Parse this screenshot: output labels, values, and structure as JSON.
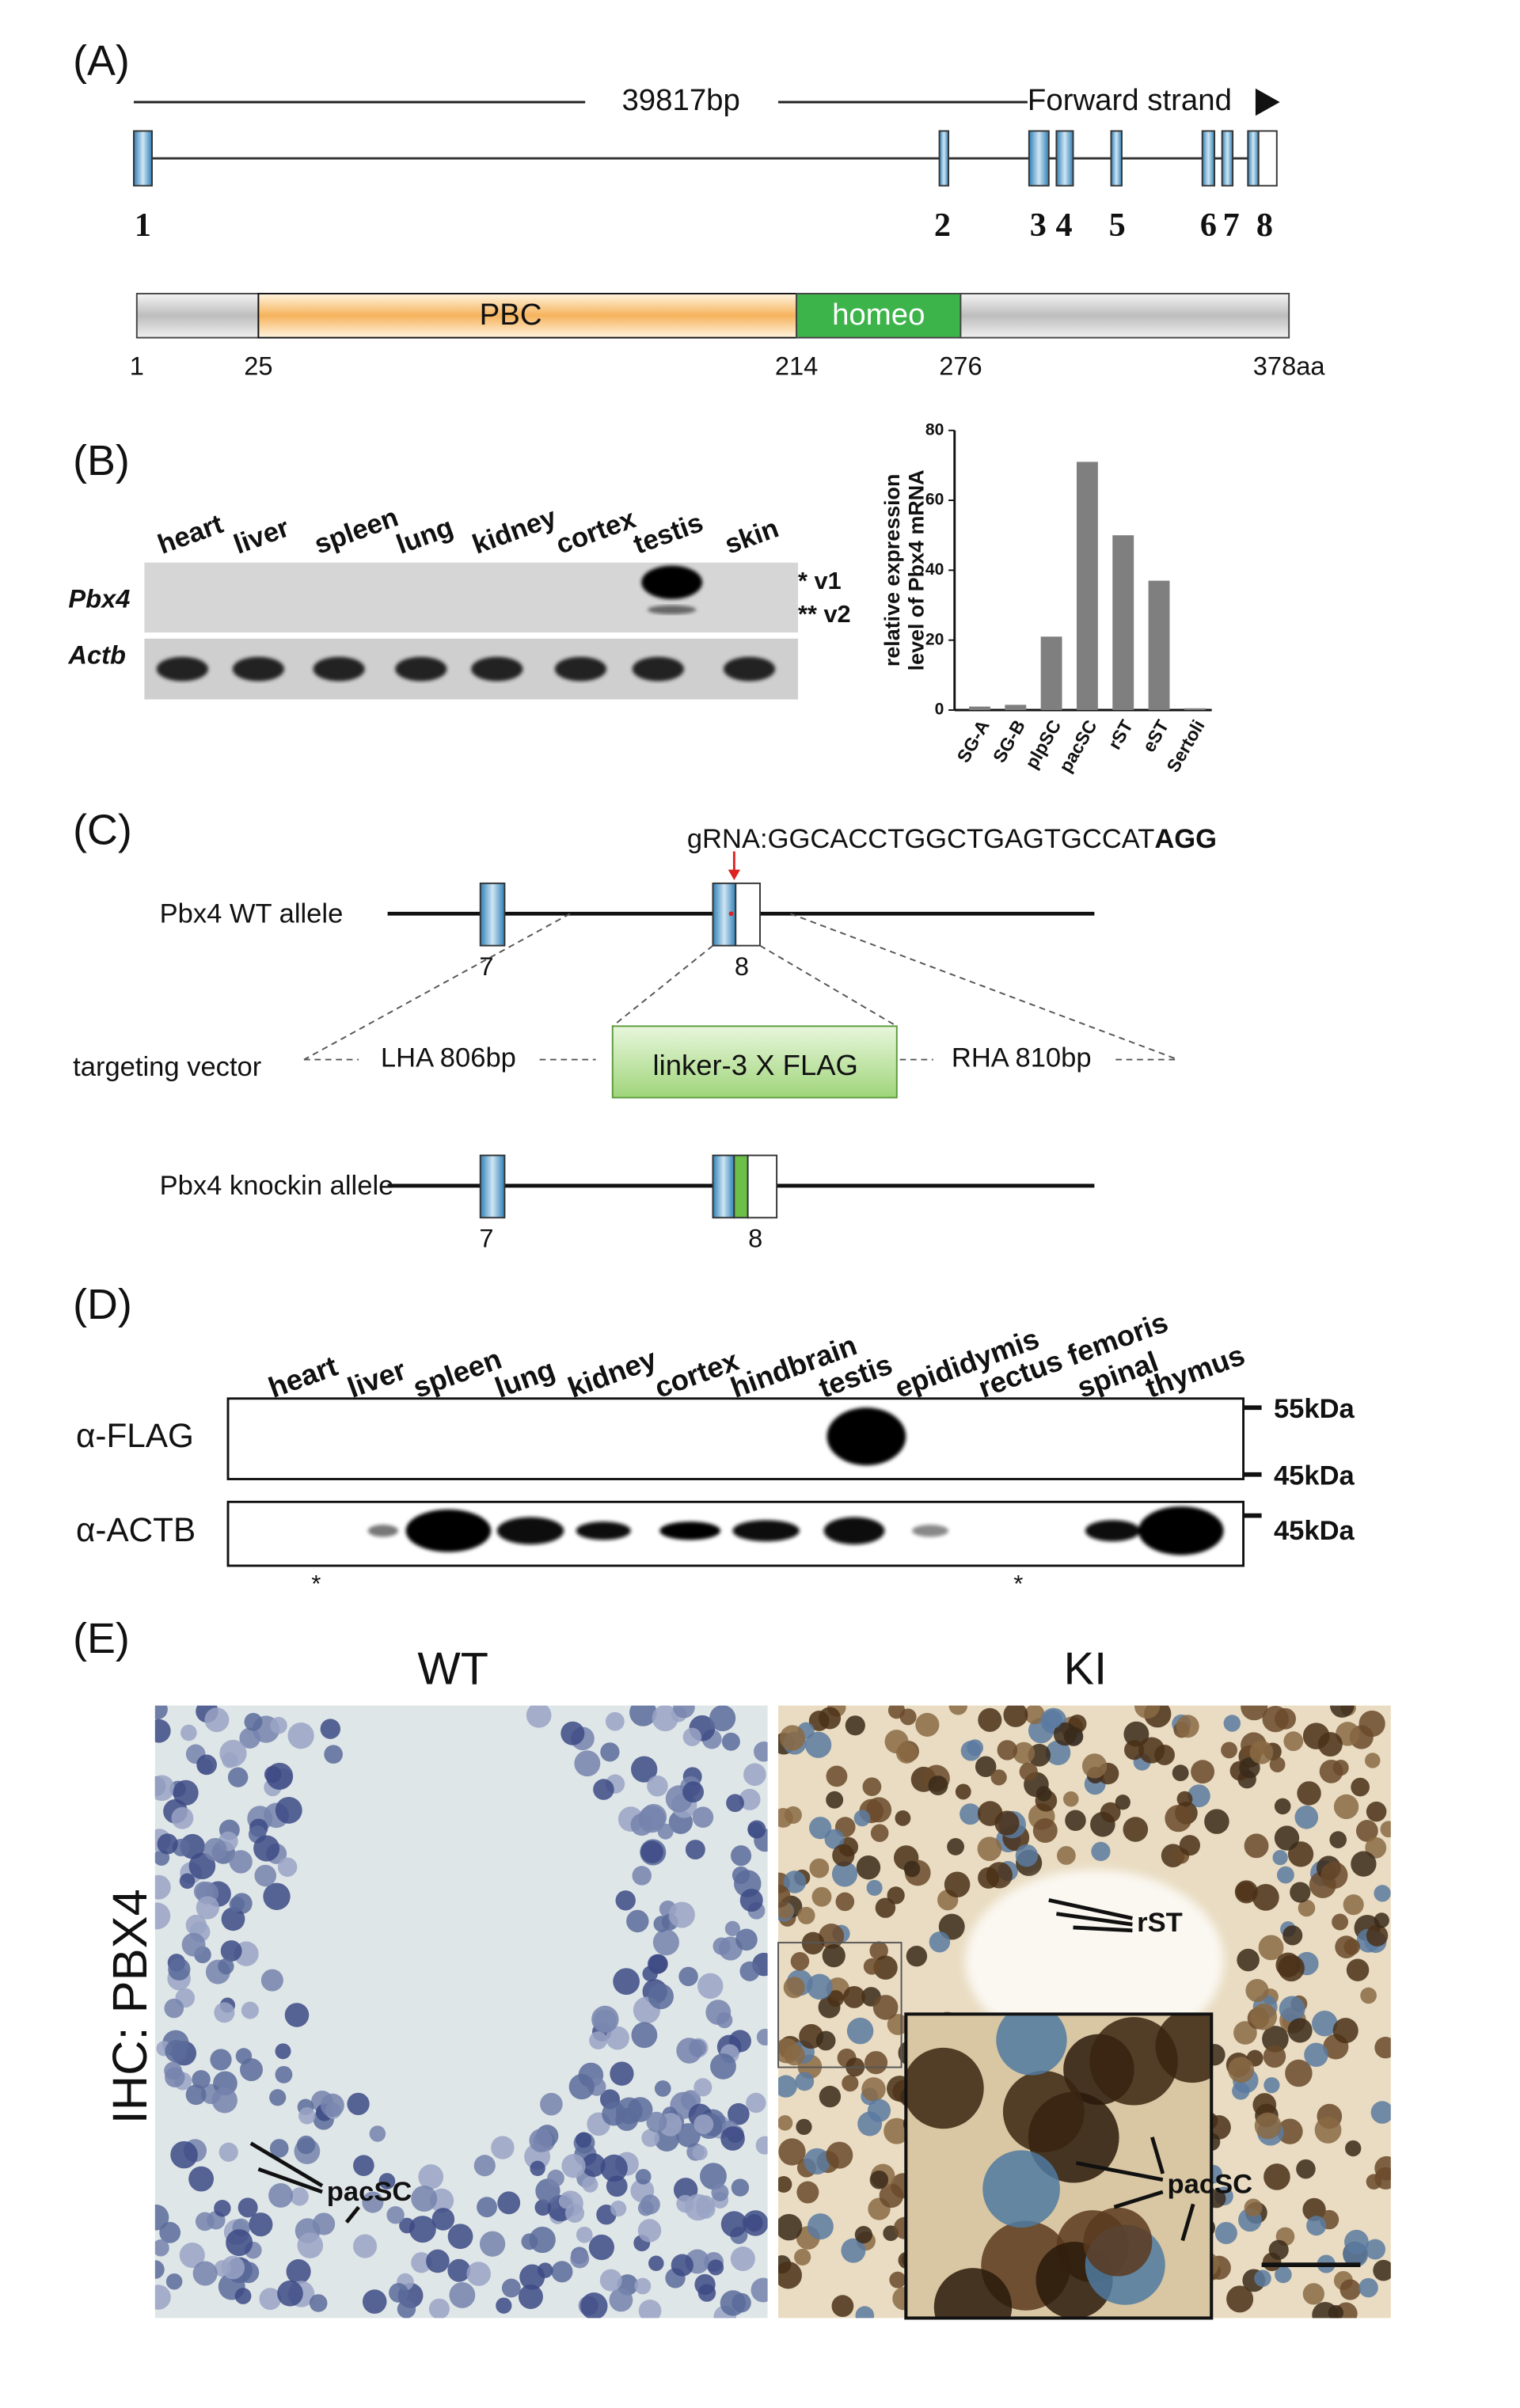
{
  "panel_a": {
    "label": "(A)",
    "length": "39817bp",
    "strand": "Forward strand",
    "exons": [
      "1",
      "2",
      "3",
      "4",
      "5",
      "6",
      "7",
      "8"
    ],
    "domains": [
      "PBC",
      "homeo"
    ],
    "positions": [
      "1",
      "25",
      "214",
      "276",
      "378aa"
    ]
  },
  "panel_b": {
    "label": "(B)",
    "lanes": [
      "heart",
      "liver",
      "spleen",
      "lung",
      "kidney",
      "cortex",
      "testis",
      "skin"
    ],
    "rows": [
      "Pbx4",
      "Actb"
    ],
    "variants": [
      "* v1",
      "** v2"
    ],
    "chart_data": {
      "type": "bar",
      "ylabel": [
        "relative expression",
        "level of Pbx4 mRNA"
      ],
      "categories": [
        "SG-A",
        "SG-B",
        "plpSC",
        "pacSC",
        "rST",
        "eST",
        "Sertoli"
      ],
      "values": [
        1,
        1.5,
        21,
        71,
        50,
        37,
        0.5
      ],
      "color": "#7f7f7f",
      "ylim": [
        0,
        80
      ],
      "yticks": [
        0,
        20,
        40,
        60,
        80
      ]
    }
  },
  "panel_c": {
    "label": "(C)",
    "grna": "gRNA:GGCACCTGGCTGAGTGCCAT",
    "pam": "AGG",
    "wt_allele": "Pbx4 WT allele",
    "wt_exons": [
      "7",
      "8"
    ],
    "targeting_vector": "targeting vector",
    "lha": "LHA 806bp",
    "insert": "linker-3 X FLAG",
    "rha": "RHA 810bp",
    "ki_allele": "Pbx4 knockin allele",
    "ki_exons": [
      "7",
      "8"
    ]
  },
  "panel_d": {
    "label": "(D)",
    "lanes": [
      "heart",
      "liver",
      "spleen",
      "lung",
      "kidney",
      "cortex",
      "hindbrain",
      "testis",
      "epididymis",
      "rectus femoris",
      "spinal",
      "thymus"
    ],
    "rows": [
      "α-FLAG",
      "α-ACTB"
    ],
    "markers": [
      "55kDa",
      "45kDa",
      "45kDa"
    ],
    "asterisks": [
      "*",
      "*"
    ]
  },
  "panel_e": {
    "label": "(E)",
    "wt": "WT",
    "ki": "KI",
    "stain": "IHC: PBX4",
    "wt_annotation": "pacSC",
    "ki_annotations": [
      "rST",
      "pacSC"
    ]
  }
}
